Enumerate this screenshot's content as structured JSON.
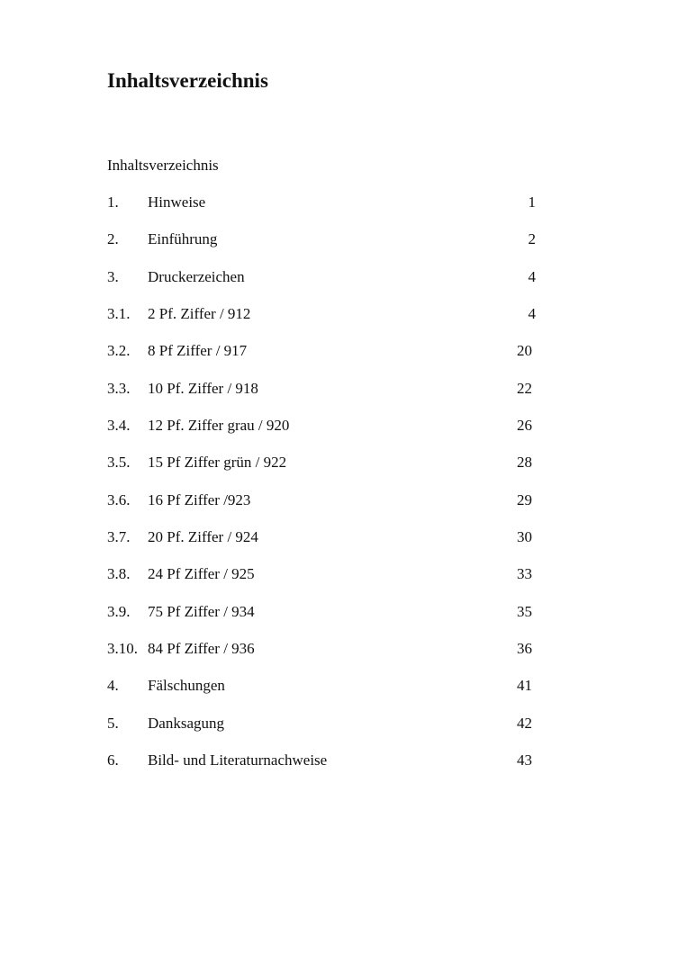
{
  "heading": "Inhaltsverzeichnis",
  "subheading": "Inhaltsverzeichnis",
  "entries": [
    {
      "number": "1.",
      "title": "Hinweise",
      "page": "1"
    },
    {
      "number": "2.",
      "title": "Einführung",
      "page": "2"
    },
    {
      "number": "3.",
      "title": "Druckerzeichen",
      "page": "4"
    },
    {
      "number": "3.1.",
      "title": "2 Pf. Ziffer / 912",
      "page": "4"
    },
    {
      "number": "3.2.",
      "title": "8 Pf Ziffer / 917",
      "page": "20"
    },
    {
      "number": "3.3.",
      "title": "10 Pf. Ziffer / 918",
      "page": "22"
    },
    {
      "number": "3.4.",
      "title": "12 Pf. Ziffer grau / 920",
      "page": "26"
    },
    {
      "number": "3.5.",
      "title": "15 Pf Ziffer grün / 922",
      "page": "28"
    },
    {
      "number": "3.6.",
      "title": "16 Pf Ziffer /923",
      "page": "29"
    },
    {
      "number": "3.7.",
      "title": "20 Pf. Ziffer / 924",
      "page": "30"
    },
    {
      "number": "3.8.",
      "title": "24 Pf Ziffer / 925",
      "page": "33"
    },
    {
      "number": "3.9.",
      "title": "75 Pf Ziffer / 934",
      "page": "35"
    },
    {
      "number": "3.10.",
      "title": "84 Pf Ziffer / 936",
      "page": "36"
    },
    {
      "number": "4.",
      "title": "Fälschungen",
      "page": "41"
    },
    {
      "number": "5.",
      "title": "Danksagung",
      "page": "42"
    },
    {
      "number": "6.",
      "title": "Bild- und Literaturnachweise",
      "page": "43"
    }
  ]
}
